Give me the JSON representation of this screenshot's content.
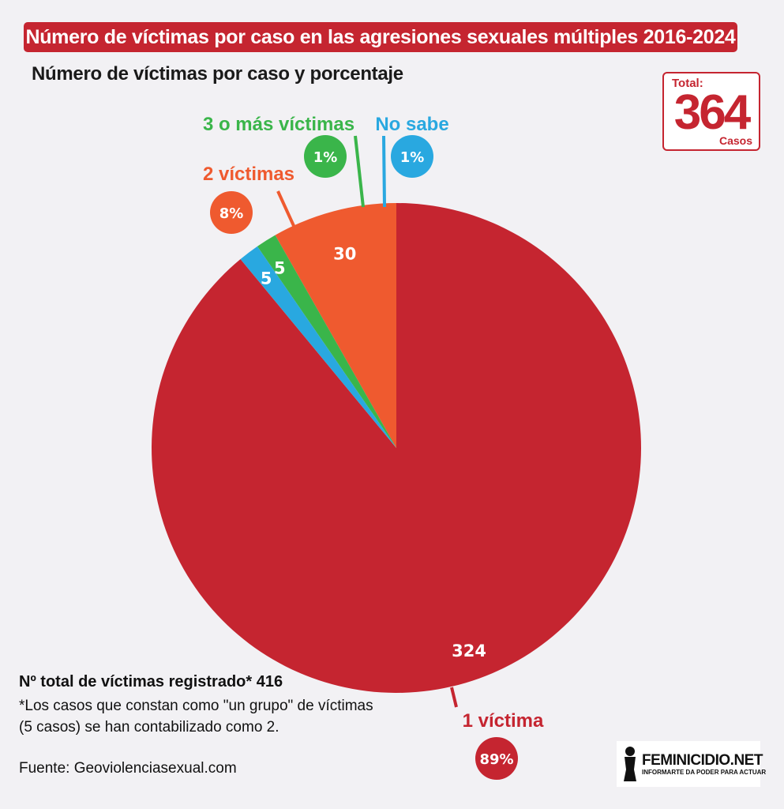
{
  "header": {
    "title": "Número de víctimas por caso en las agresiones sexuales múltiples 2016-2024",
    "subtitle": "Número de víctimas por caso y porcentaje"
  },
  "total": {
    "label": "Total:",
    "value": "364",
    "unit": "Casos"
  },
  "chart_data": {
    "type": "pie",
    "total": 364,
    "slices": [
      {
        "label": "1 víctima",
        "value": 324,
        "percent": "89%",
        "color": "#c52530"
      },
      {
        "label": "2 víctimas",
        "value": 30,
        "percent": "8%",
        "color": "#ef5a2f"
      },
      {
        "label": "3 o más víctimas",
        "value": 5,
        "percent": "1%",
        "color": "#3ab54a"
      },
      {
        "label": "No sabe",
        "value": 5,
        "percent": "1%",
        "color": "#29a8e0"
      }
    ]
  },
  "notes": {
    "total_victims": "Nº total de víctimas registrado* 416",
    "footnote": "*Los casos que constan como \"un grupo\" de víctimas (5 casos) se han contabilizado como 2.",
    "source": "Fuente: Geoviolenciasexual.com"
  },
  "logo": {
    "name": "FEMINICIDIO.NET",
    "tagline": "INFORMARTE DA PODER PARA ACTUAR"
  }
}
